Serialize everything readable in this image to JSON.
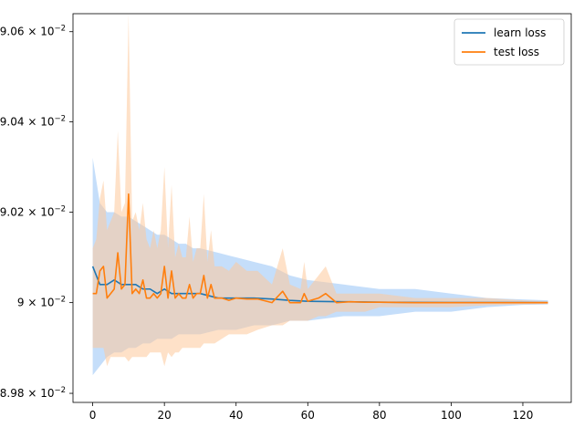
{
  "chart_data": {
    "type": "line",
    "title": "",
    "xlabel": "",
    "ylabel": "",
    "xlim": [
      -5.5,
      133.5
    ],
    "ylim": [
      0.08978,
      0.09064
    ],
    "yscale": "log",
    "grid": false,
    "legend_position": "top-right",
    "x_ticks": [
      {
        "value": 0,
        "label": "0"
      },
      {
        "value": 20,
        "label": "20"
      },
      {
        "value": 40,
        "label": "40"
      },
      {
        "value": 60,
        "label": "60"
      },
      {
        "value": 80,
        "label": "80"
      },
      {
        "value": 100,
        "label": "100"
      },
      {
        "value": 120,
        "label": "120"
      }
    ],
    "y_ticks": [
      {
        "value": 0.0898,
        "mantissa": "8.98",
        "exp": "−2"
      },
      {
        "value": 0.09,
        "mantissa": "9",
        "exp": "−2"
      },
      {
        "value": 0.0902,
        "mantissa": "9.02",
        "exp": "−2"
      },
      {
        "value": 0.0904,
        "mantissa": "9.04",
        "exp": "−2"
      },
      {
        "value": 0.0906,
        "mantissa": "9.06",
        "exp": "−2"
      }
    ],
    "series": [
      {
        "name": "learn loss",
        "color": "#1f77b4",
        "band_color": "#9fc8f6",
        "x": [
          0,
          2,
          4,
          6,
          8,
          10,
          12,
          14,
          16,
          18,
          20,
          22,
          24,
          26,
          28,
          30,
          35,
          40,
          45,
          50,
          55,
          60,
          70,
          80,
          90,
          100,
          110,
          120,
          127
        ],
        "y": [
          0.09008,
          0.09004,
          0.09004,
          0.09005,
          0.09004,
          0.09004,
          0.09004,
          0.09003,
          0.09003,
          0.09002,
          0.09003,
          0.09002,
          0.09002,
          0.09002,
          0.09002,
          0.09002,
          0.09001,
          0.09001,
          0.09001,
          0.090008,
          0.090005,
          0.090003,
          0.090002,
          0.090001,
          0.0900005,
          0.0900003,
          0.0900002,
          0.0900001,
          0.09
        ],
        "upper": [
          0.09032,
          0.09022,
          0.0902,
          0.0902,
          0.09019,
          0.09019,
          0.09018,
          0.09017,
          0.09016,
          0.09015,
          0.09015,
          0.09014,
          0.09013,
          0.09013,
          0.09012,
          0.09012,
          0.09011,
          0.0901,
          0.09009,
          0.09008,
          0.09006,
          0.09005,
          0.09004,
          0.09003,
          0.09003,
          0.09002,
          0.09001,
          0.090007,
          0.090005
        ],
        "lower": [
          0.08984,
          0.08986,
          0.08988,
          0.08989,
          0.08989,
          0.0899,
          0.0899,
          0.08991,
          0.08991,
          0.08992,
          0.08992,
          0.08992,
          0.08993,
          0.08993,
          0.08993,
          0.08993,
          0.08994,
          0.08994,
          0.08995,
          0.08995,
          0.08996,
          0.08996,
          0.08997,
          0.08997,
          0.08998,
          0.08998,
          0.08999,
          0.089995,
          0.089996
        ]
      },
      {
        "name": "test loss",
        "color": "#ff7f0e",
        "band_color": "#fdc99a",
        "x": [
          0,
          1,
          2,
          3,
          4,
          5,
          6,
          7,
          8,
          9,
          10,
          11,
          12,
          13,
          14,
          15,
          16,
          17,
          18,
          19,
          20,
          21,
          22,
          23,
          24,
          25,
          26,
          27,
          28,
          29,
          30,
          31,
          32,
          33,
          34,
          36,
          38,
          40,
          43,
          46,
          50,
          53,
          55,
          58,
          59,
          60,
          63,
          65,
          68,
          72,
          76,
          80,
          90,
          100,
          110,
          120,
          127
        ],
        "y": [
          0.09002,
          0.09002,
          0.09007,
          0.09008,
          0.09001,
          0.09002,
          0.09003,
          0.09011,
          0.09003,
          0.09004,
          0.09024,
          0.09002,
          0.09003,
          0.09002,
          0.09005,
          0.09001,
          0.09001,
          0.09002,
          0.09001,
          0.09002,
          0.09008,
          0.09001,
          0.09007,
          0.09001,
          0.09002,
          0.09001,
          0.09001,
          0.09004,
          0.09001,
          0.09002,
          0.09002,
          0.09006,
          0.09001,
          0.09004,
          0.09001,
          0.09001,
          0.090005,
          0.09001,
          0.090008,
          0.090008,
          0.09,
          0.090025,
          0.09,
          0.09,
          0.09002,
          0.090003,
          0.09001,
          0.09002,
          0.09,
          0.090002,
          0.090001,
          0.090001,
          0.09,
          0.09,
          0.09,
          0.09,
          0.09
        ],
        "upper": [
          0.09012,
          0.09014,
          0.09023,
          0.09027,
          0.09016,
          0.09018,
          0.0902,
          0.09038,
          0.0902,
          0.09022,
          0.09064,
          0.09018,
          0.0902,
          0.09016,
          0.09022,
          0.09014,
          0.09012,
          0.09016,
          0.09012,
          0.09016,
          0.0903,
          0.09012,
          0.09026,
          0.0901,
          0.09013,
          0.0901,
          0.0901,
          0.09019,
          0.09009,
          0.09012,
          0.09012,
          0.09024,
          0.09009,
          0.09016,
          0.09008,
          0.09008,
          0.09007,
          0.09009,
          0.09007,
          0.09007,
          0.09004,
          0.09012,
          0.09004,
          0.09003,
          0.09009,
          0.09003,
          0.09006,
          0.09008,
          0.09002,
          0.09002,
          0.09002,
          0.09002,
          0.09001,
          0.09001,
          0.09001,
          0.090005,
          0.090003
        ],
        "lower": [
          0.0899,
          0.0899,
          0.0899,
          0.0899,
          0.08986,
          0.08988,
          0.08988,
          0.08988,
          0.08988,
          0.08988,
          0.08987,
          0.08988,
          0.08988,
          0.08988,
          0.08988,
          0.08988,
          0.08989,
          0.08989,
          0.08989,
          0.08989,
          0.08986,
          0.08989,
          0.08988,
          0.08989,
          0.08989,
          0.0899,
          0.0899,
          0.0899,
          0.0899,
          0.0899,
          0.0899,
          0.08991,
          0.08991,
          0.08991,
          0.08991,
          0.08992,
          0.08993,
          0.08993,
          0.08993,
          0.08994,
          0.08995,
          0.08995,
          0.08996,
          0.08996,
          0.08996,
          0.08996,
          0.08997,
          0.08997,
          0.08998,
          0.08998,
          0.08998,
          0.08999,
          0.08999,
          0.08999,
          0.089994,
          0.089996,
          0.089997
        ]
      }
    ]
  }
}
